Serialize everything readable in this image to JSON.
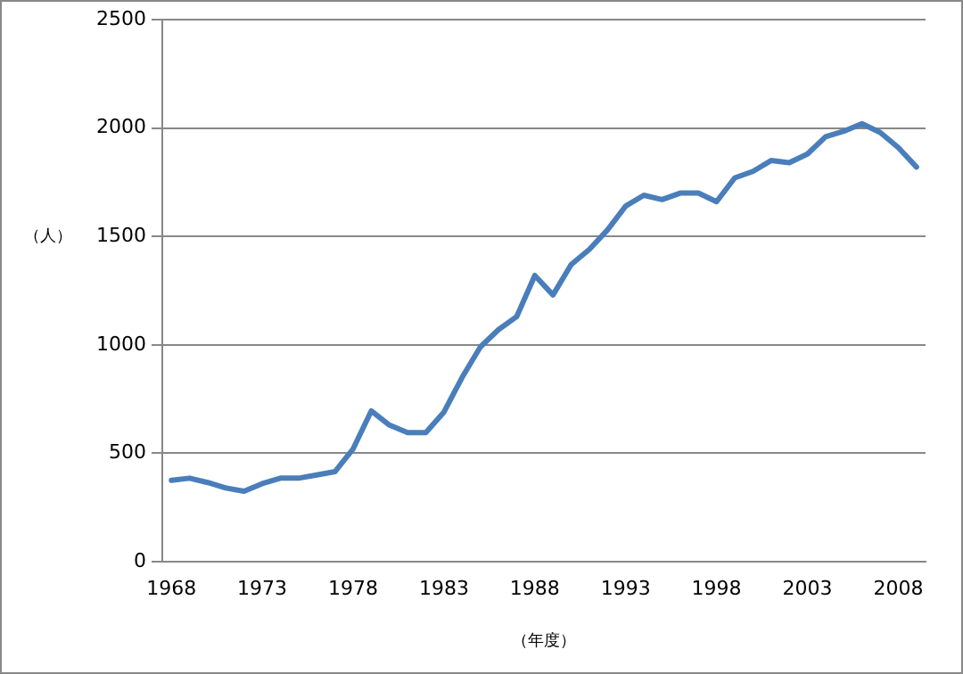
{
  "chart_data": {
    "type": "line",
    "xlabel": "（年度）",
    "ylabel": "（人）",
    "categories": [
      "1968",
      null,
      null,
      null,
      null,
      "1973",
      null,
      null,
      null,
      null,
      "1978",
      null,
      null,
      null,
      null,
      "1983",
      null,
      null,
      null,
      null,
      "1988",
      null,
      null,
      null,
      null,
      "1993",
      null,
      null,
      null,
      null,
      "1998",
      null,
      null,
      null,
      null,
      "2003",
      null,
      null,
      null,
      null,
      "2008",
      null
    ],
    "series": [
      {
        "color": "#4a7ebb",
        "values": [
          375,
          385,
          365,
          340,
          325,
          360,
          385,
          385,
          400,
          415,
          520,
          695,
          630,
          595,
          595,
          690,
          850,
          990,
          1070,
          1130,
          1320,
          1230,
          1370,
          1440,
          1530,
          1640,
          1690,
          1670,
          1700,
          1700,
          1660,
          1770,
          1800,
          1850,
          1840,
          1880,
          1960,
          1985,
          2020,
          1980,
          1910,
          1820
        ]
      }
    ],
    "ylim": [
      0,
      2500
    ],
    "yticks": [
      0,
      500,
      1000,
      1500,
      2000,
      2500
    ],
    "grid": "y",
    "legend": false,
    "marker": "none",
    "line_style": "solid"
  }
}
